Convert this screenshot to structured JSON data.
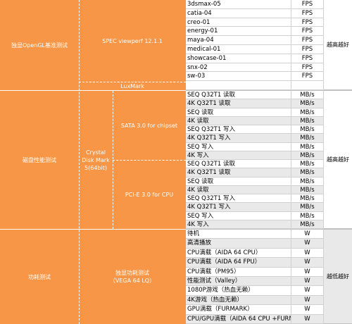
{
  "sections": [
    {
      "category": "独显OpenGL基准测试",
      "subtests": [
        {
          "name": "SPEC viewperf 12.1.1"
        },
        {
          "name": "LuxMark"
        }
      ],
      "rows": [
        {
          "item": "3dsmax-05",
          "unit": "FPS"
        },
        {
          "item": "catia-04",
          "unit": "FPS"
        },
        {
          "item": "creo-01",
          "unit": "FPS"
        },
        {
          "item": "energy-01",
          "unit": "FPS"
        },
        {
          "item": "maya-04",
          "unit": "FPS"
        },
        {
          "item": "medical-01",
          "unit": "FPS"
        },
        {
          "item": "showcase-01",
          "unit": "FPS"
        },
        {
          "item": "snx-02",
          "unit": "FPS"
        },
        {
          "item": "sw-03",
          "unit": "FPS"
        },
        {
          "item": "",
          "unit": ""
        }
      ],
      "verdict": "越高越好"
    },
    {
      "category": "磁盘性能测试",
      "tool": "Crystal Disk Mark 5(64bit)",
      "groups": [
        {
          "name": "SATA 3.0 for chipset"
        },
        {
          "name": "PCI-E 3.0 for CPU"
        }
      ],
      "rows": [
        {
          "item": "SEQ Q32T1 读取",
          "unit": "MB/s"
        },
        {
          "item": "4K Q32T1 读取",
          "unit": "MB/s"
        },
        {
          "item": "SEQ 读取",
          "unit": "MB/s"
        },
        {
          "item": "4K 读取",
          "unit": "MB/s"
        },
        {
          "item": "SEQ Q32T1 写入",
          "unit": "MB/s"
        },
        {
          "item": "4K Q32T1 写入",
          "unit": "MB/s"
        },
        {
          "item": "SEQ 写入",
          "unit": "MB/s"
        },
        {
          "item": "4K 写入",
          "unit": "MB/s"
        },
        {
          "item": "SEQ Q32T1 读取",
          "unit": "MB/s"
        },
        {
          "item": "4K Q32T1 读取",
          "unit": "MB/s"
        },
        {
          "item": "SEQ 读取",
          "unit": "MB/s"
        },
        {
          "item": "4K 读取",
          "unit": "MB/s"
        },
        {
          "item": "SEQ Q32T1 写入",
          "unit": "MB/s"
        },
        {
          "item": "4K Q32T1 写入",
          "unit": "MB/s"
        },
        {
          "item": "SEQ 写入",
          "unit": "MB/s"
        },
        {
          "item": "4K 写入",
          "unit": "MB/s"
        }
      ],
      "verdict": "越高越好"
    },
    {
      "category": "功耗测试",
      "subtest": "独显功耗测试\n（VEGA 64 LQ）",
      "rows": [
        {
          "item": "待机",
          "unit": "W"
        },
        {
          "item": "高清播放",
          "unit": "W"
        },
        {
          "item": "CPU满载（AIDA 64 CPU）",
          "unit": "W"
        },
        {
          "item": "CPU满载（AIDA 64 FPU）",
          "unit": "W"
        },
        {
          "item": "CPU满载（PM95）",
          "unit": "W"
        },
        {
          "item": "性能测试（Valley）",
          "unit": "W"
        },
        {
          "item": "1080P游戏（热血无赖）",
          "unit": "W"
        },
        {
          "item": "4K游戏（热血无赖）",
          "unit": "W"
        },
        {
          "item": "GPU满载（FURMARK）",
          "unit": "W"
        },
        {
          "item": "CPU/GPU满载（AIDA 64 CPU +FURM",
          "unit": "W"
        }
      ],
      "verdict": "越低越好"
    }
  ]
}
